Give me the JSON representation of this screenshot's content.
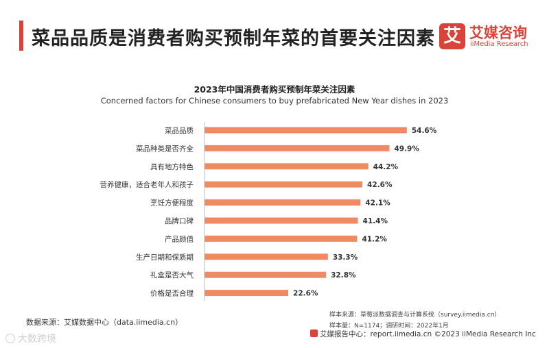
{
  "header": {
    "title": "菜品品质是消费者购买预制年菜的首要关注因素"
  },
  "logo": {
    "mark": "艾",
    "name_cn": "艾媒咨询",
    "name_en": "iiMedia Research"
  },
  "colors": {
    "accent": "#d9433a",
    "bar": "#ef8a62"
  },
  "chart_data": {
    "type": "bar",
    "orientation": "horizontal",
    "title": "2023年中国消费者购买预制年菜关注因素",
    "subtitle": "Concerned factors for Chinese consumers to buy prefabricated New Year dishes in 2023",
    "categories": [
      "菜品品质",
      "菜品种类是否齐全",
      "具有地方特色",
      "营养健康，适合老年人和孩子",
      "烹饪方便程度",
      "品牌口碑",
      "产品颜值",
      "生产日期和保质期",
      "礼盒是否大气",
      "价格是否合理"
    ],
    "values": [
      54.6,
      49.9,
      44.2,
      42.6,
      42.1,
      41.4,
      41.2,
      33.3,
      32.8,
      22.6
    ],
    "value_labels": [
      "54.6%",
      "49.9%",
      "44.2%",
      "42.6%",
      "42.1%",
      "41.4%",
      "41.2%",
      "33.3%",
      "32.8%",
      "22.6%"
    ],
    "xlim": [
      0,
      100
    ],
    "grid": false,
    "legend": "none"
  },
  "notes": {
    "sample_source": "样本来源：草莓派数据调查与计算系统（survey.iimedia.cn）",
    "sample_size": "样本量：N=1174；调研时间：2022年1月",
    "data_source": "数据来源：艾媒数据中心（data.iimedia.cn）",
    "footer": "艾媒报告中心：report.iimedia.cn  ©2023  iiMedia Research  Inc"
  },
  "watermark": "大数跨境"
}
